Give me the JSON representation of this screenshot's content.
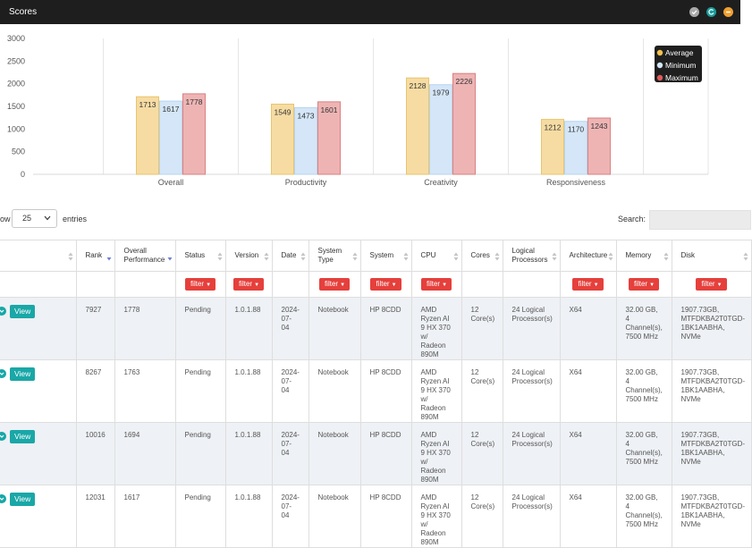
{
  "window": {
    "title": "Scores",
    "buttons": [
      {
        "name": "check",
        "color": "#a9a9a9"
      },
      {
        "name": "refresh",
        "color": "#1a9c9c"
      },
      {
        "name": "minimize",
        "color": "#f0a030"
      }
    ]
  },
  "chart_data": {
    "type": "bar",
    "categories": [
      "Overall",
      "Productivity",
      "Creativity",
      "Responsiveness"
    ],
    "series": [
      {
        "name": "Average",
        "values": [
          1713,
          1549,
          2128,
          1212
        ],
        "color": "#f6dca3",
        "stroke": "#e9c46a"
      },
      {
        "name": "Minimum",
        "values": [
          1617,
          1473,
          1979,
          1170
        ],
        "color": "#d4e6f7",
        "stroke": "#b7d4ee"
      },
      {
        "name": "Maximum",
        "values": [
          1778,
          1601,
          2226,
          1243
        ],
        "color": "#eeb4b4",
        "stroke": "#d98080"
      }
    ],
    "ylim": [
      0,
      3000
    ],
    "yticks": [
      0,
      500,
      1000,
      1500,
      2000,
      2500,
      3000
    ],
    "grid": "vertical",
    "legend": "top-right"
  },
  "table_controls": {
    "show_label": "ow",
    "page_length": "25",
    "entries_label": "entries",
    "search_label": "Search:"
  },
  "table": {
    "columns": [
      {
        "label": "",
        "sort": "none",
        "filter": false
      },
      {
        "label": "Rank",
        "sort": "desc",
        "filter": false
      },
      {
        "label": "Overall Performance",
        "sort": "desc",
        "filter": false
      },
      {
        "label": "Status",
        "sort": "none",
        "filter": true
      },
      {
        "label": "Version",
        "sort": "none",
        "filter": true
      },
      {
        "label": "Date",
        "sort": "none",
        "filter": false
      },
      {
        "label": "System Type",
        "sort": "none",
        "filter": true
      },
      {
        "label": "System",
        "sort": "none",
        "filter": true
      },
      {
        "label": "CPU",
        "sort": "none",
        "filter": true
      },
      {
        "label": "Cores",
        "sort": "none",
        "filter": false
      },
      {
        "label": "Logical Processors",
        "sort": "none",
        "filter": false
      },
      {
        "label": "Architecture",
        "sort": "none",
        "filter": true
      },
      {
        "label": "Memory",
        "sort": "none",
        "filter": true
      },
      {
        "label": "Disk",
        "sort": "none",
        "filter": true
      }
    ],
    "filter_label": "filter",
    "view_label": "View",
    "rows": [
      [
        "7927",
        "1778",
        "Pending",
        "1.0.1.88",
        "2024-07-04",
        "Notebook",
        "HP 8CDD",
        "AMD Ryzen AI 9 HX 370 w/ Radeon 890M",
        "12 Core(s)",
        "24 Logical Processor(s)",
        "X64",
        "32.00 GB, 4 Channel(s), 7500 MHz",
        "1907.73GB, MTFDKBA2T0TGD-1BK1AABHA, NVMe"
      ],
      [
        "8267",
        "1763",
        "Pending",
        "1.0.1.88",
        "2024-07-04",
        "Notebook",
        "HP 8CDD",
        "AMD Ryzen AI 9 HX 370 w/ Radeon 890M",
        "12 Core(s)",
        "24 Logical Processor(s)",
        "X64",
        "32.00 GB, 4 Channel(s), 7500 MHz",
        "1907.73GB, MTFDKBA2T0TGD-1BK1AABHA, NVMe"
      ],
      [
        "10016",
        "1694",
        "Pending",
        "1.0.1.88",
        "2024-07-04",
        "Notebook",
        "HP 8CDD",
        "AMD Ryzen AI 9 HX 370 w/ Radeon 890M",
        "12 Core(s)",
        "24 Logical Processor(s)",
        "X64",
        "32.00 GB, 4 Channel(s), 7500 MHz",
        "1907.73GB, MTFDKBA2T0TGD-1BK1AABHA, NVMe"
      ],
      [
        "12031",
        "1617",
        "Pending",
        "1.0.1.88",
        "2024-07-04",
        "Notebook",
        "HP 8CDD",
        "AMD Ryzen AI 9 HX 370 w/ Radeon 890M",
        "12 Core(s)",
        "24 Logical Processor(s)",
        "X64",
        "32.00 GB, 4 Channel(s), 7500 MHz",
        "1907.73GB, MTFDKBA2T0TGD-1BK1AABHA, NVMe"
      ]
    ]
  }
}
